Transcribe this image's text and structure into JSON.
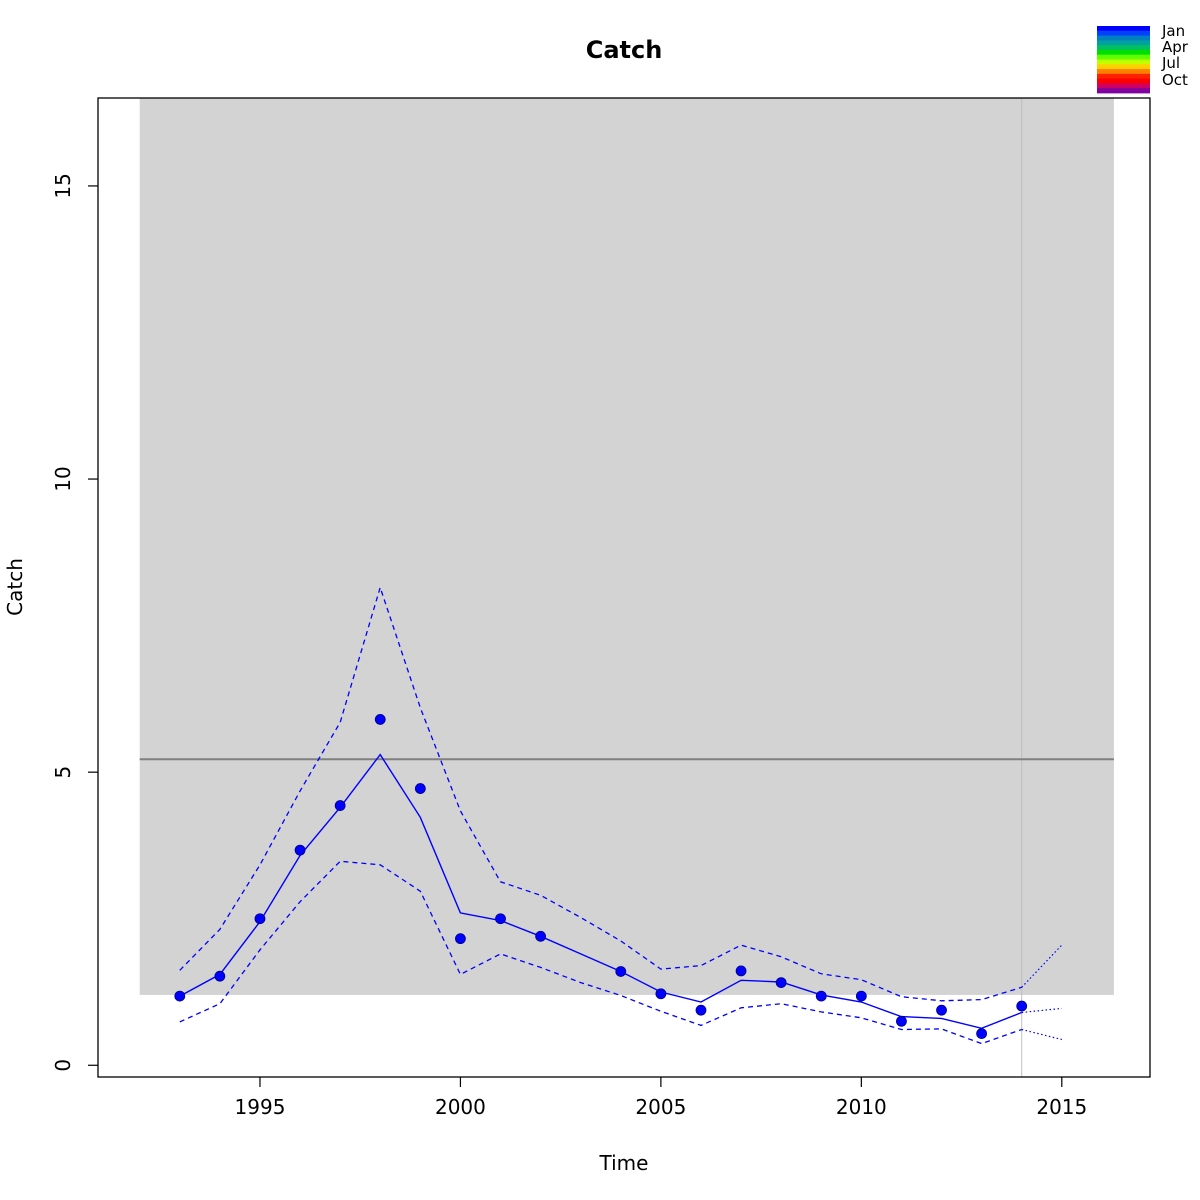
{
  "chart_data": {
    "type": "line",
    "title": "Catch",
    "xlabel": "Time",
    "ylabel": "Catch",
    "xlim": [
      1990.96,
      2017.2
    ],
    "ylim": [
      -0.2,
      16.5
    ],
    "x_ticks": [
      {
        "value": 1995,
        "label": "1995"
      },
      {
        "value": 2000,
        "label": "2000"
      },
      {
        "value": 2005,
        "label": "2005"
      },
      {
        "value": 2010,
        "label": "2010"
      },
      {
        "value": 2015,
        "label": "2015"
      }
    ],
    "y_ticks": [
      {
        "value": 0,
        "label": "0"
      },
      {
        "value": 5,
        "label": "5"
      },
      {
        "value": 10,
        "label": "10"
      },
      {
        "value": 15,
        "label": "15"
      }
    ],
    "grid": false,
    "shaded_band": {
      "x_from": 1992,
      "x_to": 2016.3,
      "y_from": 1.2,
      "y_to": 16.5,
      "color": "#d3d3d3"
    },
    "reference_line": {
      "y": 5.22,
      "x_from": 1992,
      "x_to": 2016.3,
      "color": "#808080"
    },
    "vertical_line": {
      "x": 2014,
      "color": "#bebebe"
    },
    "observed": {
      "x": [
        1993,
        1994,
        1995,
        1996,
        1997,
        1998,
        1999,
        2000,
        2001,
        2002,
        2004,
        2005,
        2006,
        2007,
        2008,
        2009,
        2010,
        2011,
        2012,
        2013,
        2014
      ],
      "y": [
        1.18,
        1.52,
        2.5,
        3.67,
        4.43,
        5.9,
        4.72,
        2.16,
        2.5,
        2.2,
        1.6,
        1.22,
        0.94,
        1.61,
        1.41,
        1.18,
        1.18,
        0.75,
        0.94,
        0.54,
        1.01
      ],
      "color": "#0000ff"
    },
    "fitted": {
      "x": [
        1993,
        1994,
        1995,
        1996,
        1997,
        1998,
        1999,
        2000,
        2001,
        2002,
        2003,
        2004,
        2005,
        2006,
        2007,
        2008,
        2009,
        2010,
        2011,
        2012,
        2013,
        2014
      ],
      "y": [
        1.18,
        1.55,
        2.45,
        3.58,
        4.4,
        5.3,
        4.23,
        2.6,
        2.47,
        2.2,
        1.9,
        1.6,
        1.25,
        1.08,
        1.45,
        1.42,
        1.2,
        1.08,
        0.83,
        0.8,
        0.63,
        0.9
      ],
      "color": "#0000ff"
    },
    "upper": {
      "x": [
        1993,
        1994,
        1995,
        1996,
        1997,
        1998,
        1999,
        2000,
        2001,
        2002,
        2003,
        2004,
        2005,
        2006,
        2007,
        2008,
        2009,
        2010,
        2011,
        2012,
        2013,
        2014
      ],
      "y": [
        1.62,
        2.32,
        3.42,
        4.68,
        5.85,
        8.15,
        6.1,
        4.34,
        3.13,
        2.9,
        2.52,
        2.12,
        1.64,
        1.7,
        2.05,
        1.85,
        1.56,
        1.46,
        1.17,
        1.1,
        1.12,
        1.33
      ],
      "color": "#0000ff"
    },
    "lower": {
      "x": [
        1993,
        1994,
        1995,
        1996,
        1997,
        1998,
        1999,
        2000,
        2001,
        2002,
        2003,
        2004,
        2005,
        2006,
        2007,
        2008,
        2009,
        2010,
        2011,
        2012,
        2013,
        2014
      ],
      "y": [
        0.74,
        1.05,
        1.97,
        2.79,
        3.48,
        3.42,
        2.97,
        1.55,
        1.9,
        1.67,
        1.41,
        1.19,
        0.92,
        0.68,
        0.98,
        1.05,
        0.91,
        0.81,
        0.61,
        0.62,
        0.37,
        0.61
      ],
      "color": "#0000ff"
    },
    "forecast": {
      "x": [
        2014,
        2015
      ],
      "mean": [
        0.9,
        0.97
      ],
      "upper": [
        1.33,
        2.05
      ],
      "lower": [
        0.61,
        0.44
      ],
      "color": "#0000ff"
    },
    "legend": {
      "placement": "top-right",
      "labels": [
        "Jan",
        "Apr",
        "Jul",
        "Oct"
      ],
      "colors": [
        "#0000ff",
        "#0040ff",
        "#0080c0",
        "#00a0a0",
        "#00c060",
        "#00e000",
        "#60ff00",
        "#c0ff00",
        "#ffd000",
        "#ff8000",
        "#ff2000",
        "#ff0000",
        "#d00060",
        "#8000a0"
      ]
    }
  }
}
